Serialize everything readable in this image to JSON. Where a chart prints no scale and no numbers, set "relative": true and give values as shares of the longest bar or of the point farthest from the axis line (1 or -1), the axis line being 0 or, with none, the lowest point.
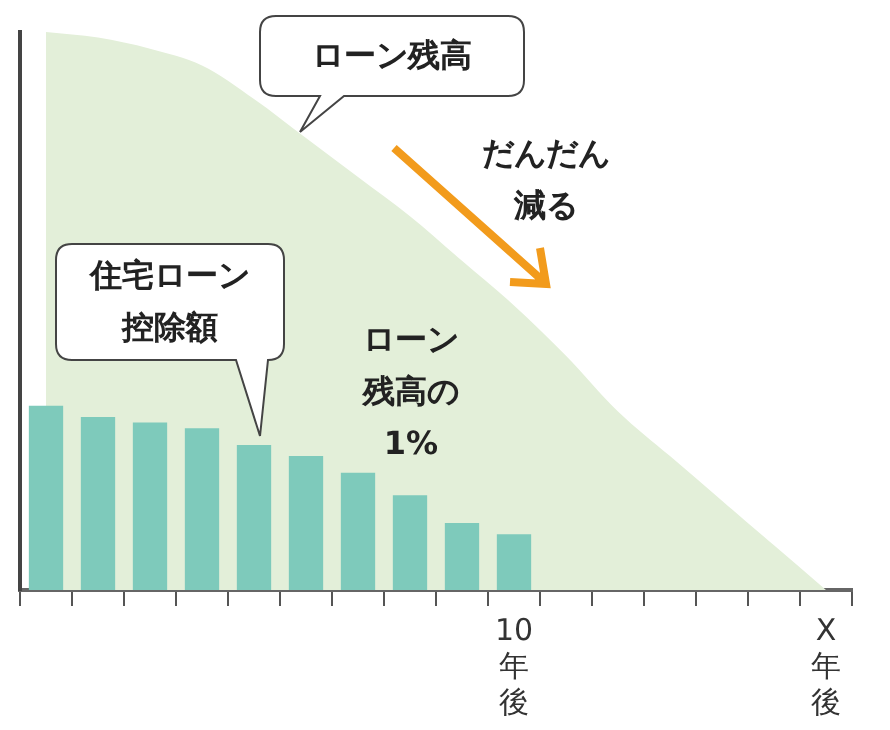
{
  "chart_data": {
    "type": "bar",
    "relative": true,
    "legend": false,
    "grid": false,
    "categories": [
      null,
      null,
      null,
      null,
      null,
      null,
      null,
      null,
      null,
      "10年後",
      null,
      null,
      null,
      null,
      null,
      "X年後"
    ],
    "series": [
      {
        "name": "ローン残高",
        "type": "area",
        "color": "#e3efd9",
        "values": [
          1.0,
          0.99,
          0.97,
          0.94,
          0.88,
          0.81,
          0.74,
          0.67,
          0.59,
          0.51,
          0.42,
          0.32,
          0.24,
          0.16,
          0.08,
          0
        ]
      },
      {
        "color": "#7ecabb",
        "values": [
          0.33,
          0.31,
          0.3,
          0.29,
          0.26,
          0.24,
          0.21,
          0.17,
          0.12,
          0.1,
          null,
          null,
          null,
          null,
          null,
          null
        ]
      }
    ],
    "annotations": [
      "住宅ローン控除額",
      "だんだん減る",
      "ローン残高の1%"
    ]
  }
}
